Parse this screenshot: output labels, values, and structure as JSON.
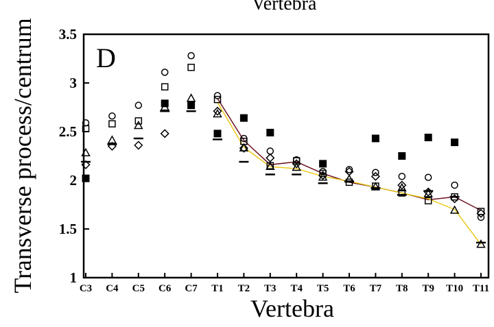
{
  "chart_data": {
    "type": "scatter",
    "panel_label": "D",
    "top_text": "Vertebra",
    "xlabel": "Vertebra",
    "ylabel": "Transverse process/centrum",
    "ylim": [
      1,
      3.5
    ],
    "yticks": [
      "1",
      "1.5",
      "2",
      "2.5",
      "3",
      "3.5"
    ],
    "categories": [
      "C3",
      "C4",
      "C5",
      "C6",
      "C7",
      "T1",
      "T2",
      "T3",
      "T4",
      "T5",
      "T6",
      "T7",
      "T8",
      "T9",
      "T10",
      "T11"
    ],
    "grid": false,
    "series": [
      {
        "marker": "filled-square",
        "values": [
          2.02,
          null,
          null,
          2.79,
          2.77,
          2.48,
          2.64,
          2.49,
          null,
          2.17,
          null,
          2.43,
          2.25,
          2.44,
          2.39,
          null
        ]
      },
      {
        "marker": "open-circle",
        "values": [
          2.59,
          2.66,
          2.77,
          3.11,
          3.28,
          2.87,
          2.43,
          2.3,
          2.21,
          2.09,
          2.11,
          2.08,
          2.04,
          2.03,
          1.95,
          1.62
        ]
      },
      {
        "marker": "open-square",
        "values": [
          2.53,
          2.58,
          2.61,
          2.96,
          3.16,
          2.83,
          2.4,
          2.15,
          2.2,
          2.07,
          1.98,
          1.94,
          1.87,
          1.79,
          1.83,
          1.68
        ]
      },
      {
        "marker": "open-triangle",
        "values": [
          2.28,
          2.41,
          2.56,
          2.75,
          2.84,
          2.68,
          2.33,
          2.14,
          2.13,
          2.03,
          2.01,
          1.93,
          1.92,
          1.86,
          1.69,
          1.34
        ]
      },
      {
        "marker": "open-diamond",
        "values": [
          2.16,
          2.35,
          2.36,
          2.48,
          null,
          2.71,
          2.33,
          2.23,
          2.17,
          2.05,
          2.09,
          2.04,
          1.95,
          1.88,
          1.81,
          1.66
        ]
      },
      {
        "marker": "dash",
        "values": [
          2.19,
          2.37,
          2.43,
          2.71,
          2.71,
          2.42,
          2.19,
          2.06,
          2.06,
          1.97,
          1.99,
          1.92,
          1.85,
          1.89,
          1.83,
          1.36
        ]
      }
    ],
    "lines": [
      {
        "color": "#6b1020",
        "values": [
          null,
          null,
          null,
          null,
          null,
          2.84,
          2.41,
          2.16,
          2.19,
          2.07,
          1.98,
          1.93,
          1.87,
          1.8,
          1.83,
          1.69
        ]
      },
      {
        "color": "#e8c81a",
        "values": [
          null,
          null,
          null,
          null,
          null,
          2.8,
          2.34,
          2.14,
          2.12,
          2.04,
          1.99,
          1.93,
          1.87,
          1.81,
          1.7,
          1.34
        ]
      }
    ]
  }
}
